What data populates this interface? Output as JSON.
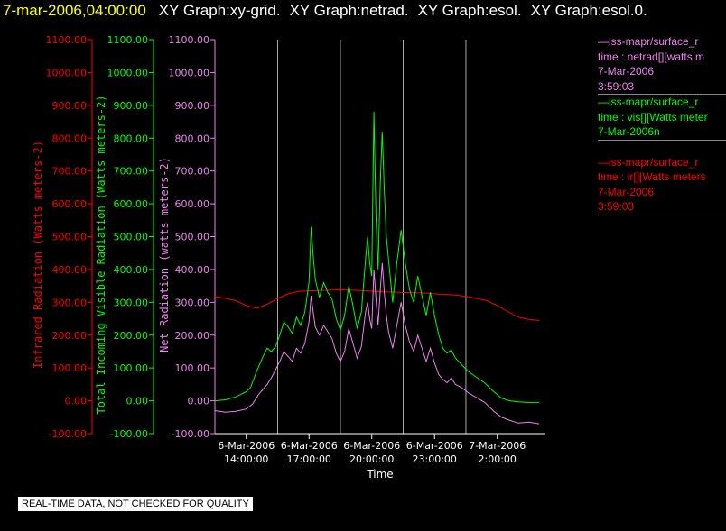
{
  "header": {
    "timestamp": "7-mar-2006,04:00:00",
    "graphs": [
      "XY Graph:xy-grid.",
      "XY Graph:netrad.",
      "XY Graph:esol.",
      "XY Graph:esol.0."
    ],
    "timestamp_color": "#ffff00"
  },
  "notice": "REAL-TIME DATA, NOT CHECKED FOR QUALITY",
  "legend": [
    {
      "color": "#ee82ee",
      "header": "—iss-mapr/surface_r",
      "lines": [
        "time : netrad[][watts m",
        "7-Mar-2006",
        "3:59:03"
      ]
    },
    {
      "color": "#00ff00",
      "header": "—iss-mapr/surface_r",
      "lines": [
        "time : vis[][Watts meter",
        "7-Mar-2006n"
      ]
    },
    {
      "color": "#ff0000",
      "header": "—iss-mapr/surface_r",
      "lines": [
        "time : ir[][Watts meters",
        "7-Mar-2006",
        "3:59:03"
      ]
    }
  ],
  "chart_data": {
    "type": "line",
    "xlabel": "Time",
    "x_tick_labels": [
      [
        "6-Mar-2006",
        "14:00:00"
      ],
      [
        "6-Mar-2006",
        "17:00:00"
      ],
      [
        "6-Mar-2006",
        "20:00:00"
      ],
      [
        "6-Mar-2006",
        "23:00:00"
      ],
      [
        "7-Mar-2006",
        "2:00:00"
      ]
    ],
    "x_tick_hours": [
      14,
      17,
      20,
      23,
      26
    ],
    "xlim": [
      12.5,
      28.3
    ],
    "y_ticks": [
      "-100.00",
      "0.00",
      "100.00",
      "200.00",
      "300.00",
      "400.00",
      "500.00",
      "600.00",
      "700.00",
      "800.00",
      "900.00",
      "1000.00",
      "1100.00"
    ],
    "ylim": [
      -100,
      1100
    ],
    "vertical_gridlines_hours": [
      15.5,
      18.5,
      21.5,
      24.5
    ],
    "axes": [
      {
        "label": "Infrared Radiation (Watts meters-2)",
        "color": "#ff0000"
      },
      {
        "label": "Total Incoming Visible Radiation (Watts meters-2)",
        "color": "#00ff00"
      },
      {
        "label": "Net Radiation (watts meters-2)",
        "color": "#ee82ee"
      }
    ],
    "series": [
      {
        "color": "#ff0000",
        "points": [
          [
            12.5,
            318
          ],
          [
            13,
            312
          ],
          [
            13.5,
            305
          ],
          [
            14,
            290
          ],
          [
            14.5,
            282
          ],
          [
            15,
            294
          ],
          [
            15.5,
            312
          ],
          [
            16,
            326
          ],
          [
            16.5,
            333
          ],
          [
            17,
            335
          ],
          [
            17.5,
            336
          ],
          [
            18,
            337
          ],
          [
            18.5,
            338
          ],
          [
            19,
            337
          ],
          [
            19.5,
            336
          ],
          [
            20,
            334
          ],
          [
            20.5,
            332
          ],
          [
            21,
            331
          ],
          [
            21.5,
            330
          ],
          [
            22,
            329
          ],
          [
            22.5,
            328
          ],
          [
            23,
            326
          ],
          [
            23.5,
            324
          ],
          [
            24,
            322
          ],
          [
            24.5,
            318
          ],
          [
            25,
            312
          ],
          [
            25.5,
            305
          ],
          [
            26,
            290
          ],
          [
            26.5,
            272
          ],
          [
            27,
            255
          ],
          [
            27.5,
            248
          ],
          [
            28,
            245
          ]
        ]
      },
      {
        "color": "#00ff00",
        "points": [
          [
            12.5,
            0
          ],
          [
            13,
            3
          ],
          [
            13.5,
            12
          ],
          [
            14,
            28
          ],
          [
            14.2,
            40
          ],
          [
            14.5,
            90
          ],
          [
            14.8,
            135
          ],
          [
            15,
            160
          ],
          [
            15.2,
            150
          ],
          [
            15.4,
            165
          ],
          [
            15.6,
            200
          ],
          [
            15.8,
            240
          ],
          [
            16,
            225
          ],
          [
            16.2,
            205
          ],
          [
            16.4,
            255
          ],
          [
            16.6,
            230
          ],
          [
            16.8,
            270
          ],
          [
            17,
            360
          ],
          [
            17.1,
            530
          ],
          [
            17.2,
            440
          ],
          [
            17.3,
            370
          ],
          [
            17.5,
            315
          ],
          [
            17.7,
            360
          ],
          [
            17.9,
            330
          ],
          [
            18.1,
            310
          ],
          [
            18.3,
            250
          ],
          [
            18.5,
            215
          ],
          [
            18.7,
            260
          ],
          [
            18.9,
            350
          ],
          [
            19.1,
            290
          ],
          [
            19.3,
            220
          ],
          [
            19.5,
            270
          ],
          [
            19.7,
            430
          ],
          [
            19.8,
            500
          ],
          [
            19.9,
            420
          ],
          [
            20,
            380
          ],
          [
            20.1,
            880
          ],
          [
            20.2,
            560
          ],
          [
            20.3,
            400
          ],
          [
            20.4,
            650
          ],
          [
            20.5,
            820
          ],
          [
            20.6,
            640
          ],
          [
            20.7,
            500
          ],
          [
            20.8,
            430
          ],
          [
            21,
            300
          ],
          [
            21.2,
            420
          ],
          [
            21.4,
            520
          ],
          [
            21.6,
            420
          ],
          [
            21.8,
            340
          ],
          [
            22,
            300
          ],
          [
            22.2,
            380
          ],
          [
            22.4,
            320
          ],
          [
            22.6,
            260
          ],
          [
            22.8,
            330
          ],
          [
            23,
            260
          ],
          [
            23.2,
            200
          ],
          [
            23.4,
            160
          ],
          [
            23.6,
            145
          ],
          [
            23.8,
            155
          ],
          [
            24,
            130
          ],
          [
            24.3,
            110
          ],
          [
            24.6,
            90
          ],
          [
            25,
            72
          ],
          [
            25.4,
            55
          ],
          [
            25.8,
            30
          ],
          [
            26.2,
            8
          ],
          [
            26.6,
            0
          ],
          [
            27,
            -3
          ],
          [
            27.5,
            -5
          ],
          [
            28,
            -5
          ]
        ]
      },
      {
        "color": "#ee82ee",
        "points": [
          [
            12.5,
            -30
          ],
          [
            13,
            -35
          ],
          [
            13.5,
            -32
          ],
          [
            14,
            -25
          ],
          [
            14.3,
            -10
          ],
          [
            14.6,
            20
          ],
          [
            15,
            50
          ],
          [
            15.2,
            70
          ],
          [
            15.4,
            95
          ],
          [
            15.6,
            120
          ],
          [
            15.8,
            150
          ],
          [
            16,
            135
          ],
          [
            16.2,
            120
          ],
          [
            16.4,
            160
          ],
          [
            16.6,
            145
          ],
          [
            16.8,
            175
          ],
          [
            17,
            240
          ],
          [
            17.1,
            320
          ],
          [
            17.2,
            270
          ],
          [
            17.3,
            225
          ],
          [
            17.5,
            200
          ],
          [
            17.7,
            230
          ],
          [
            17.9,
            210
          ],
          [
            18.1,
            190
          ],
          [
            18.3,
            145
          ],
          [
            18.5,
            120
          ],
          [
            18.7,
            150
          ],
          [
            18.9,
            220
          ],
          [
            19.1,
            175
          ],
          [
            19.3,
            130
          ],
          [
            19.5,
            165
          ],
          [
            19.7,
            270
          ],
          [
            19.8,
            300
          ],
          [
            19.9,
            250
          ],
          [
            20,
            220
          ],
          [
            20.1,
            400
          ],
          [
            20.2,
            310
          ],
          [
            20.3,
            230
          ],
          [
            20.4,
            330
          ],
          [
            20.5,
            420
          ],
          [
            20.6,
            330
          ],
          [
            20.7,
            260
          ],
          [
            20.8,
            210
          ],
          [
            21,
            160
          ],
          [
            21.2,
            230
          ],
          [
            21.4,
            300
          ],
          [
            21.6,
            230
          ],
          [
            21.8,
            180
          ],
          [
            22,
            150
          ],
          [
            22.2,
            200
          ],
          [
            22.4,
            160
          ],
          [
            22.6,
            120
          ],
          [
            22.8,
            160
          ],
          [
            23,
            115
          ],
          [
            23.2,
            80
          ],
          [
            23.4,
            65
          ],
          [
            23.6,
            55
          ],
          [
            23.8,
            70
          ],
          [
            24,
            50
          ],
          [
            24.3,
            40
          ],
          [
            24.6,
            25
          ],
          [
            25,
            10
          ],
          [
            25.4,
            -5
          ],
          [
            25.8,
            -30
          ],
          [
            26.2,
            -50
          ],
          [
            26.6,
            -60
          ],
          [
            27,
            -68
          ],
          [
            27.5,
            -65
          ],
          [
            28,
            -70
          ]
        ]
      }
    ]
  }
}
